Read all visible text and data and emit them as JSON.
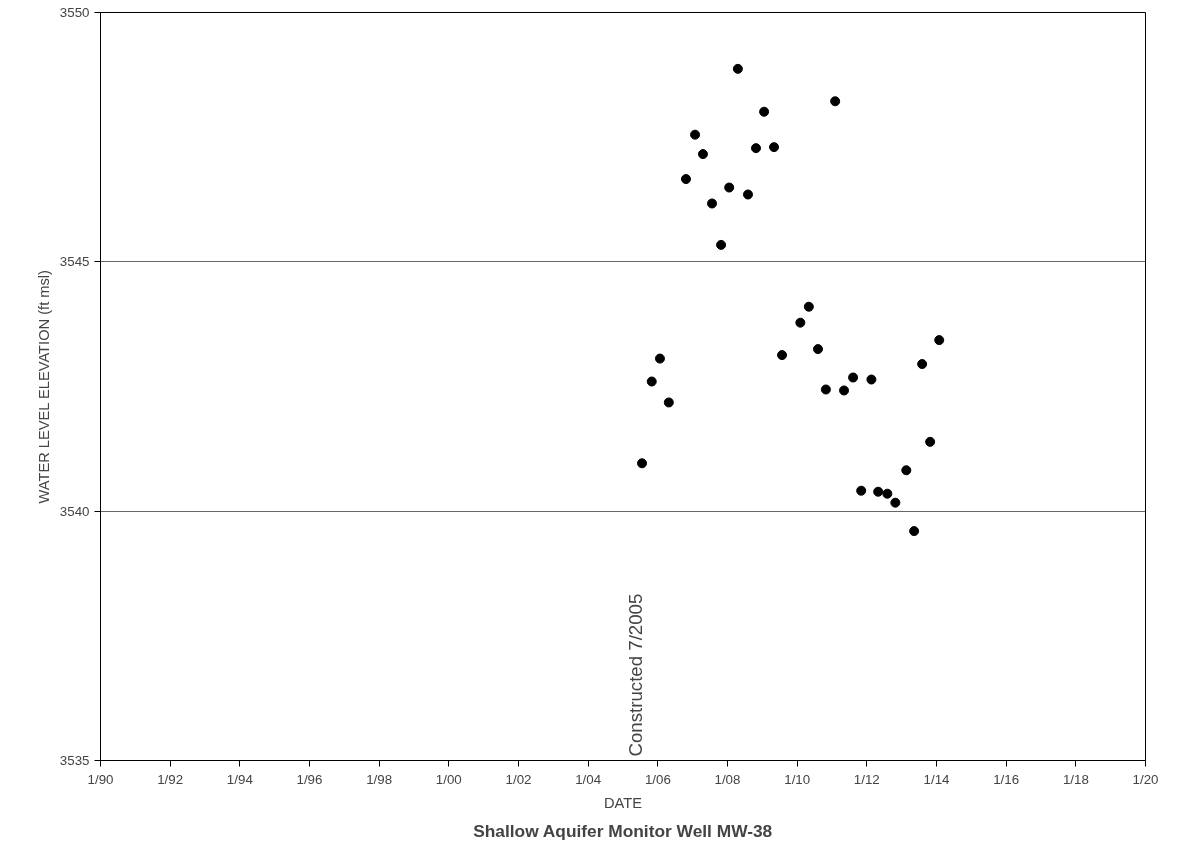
{
  "chart_data": {
    "type": "scatter",
    "title": "Shallow Aquifer Monitor Well MW-38",
    "xlabel": "DATE",
    "ylabel": "WATER LEVEL ELEVATION (ft msl)",
    "x": [
      "2005-07-19",
      "2005-10-29",
      "2006-01-23",
      "2006-04-26",
      "2006-10-23",
      "2007-01-26",
      "2007-04-19",
      "2007-07-23",
      "2007-10-26",
      "2008-01-19",
      "2008-04-19",
      "2008-08-03",
      "2008-10-26",
      "2009-01-19",
      "2009-05-03",
      "2009-07-26",
      "2010-02-03",
      "2010-05-03",
      "2010-08-07",
      "2010-10-29",
      "2011-02-03",
      "2011-05-07",
      "2011-08-10",
      "2011-11-03",
      "2012-02-18",
      "2012-04-29",
      "2012-08-03",
      "2012-10-26",
      "2013-02-18",
      "2013-05-11",
      "2013-08-03",
      "2013-10-26",
      "2014-01-29"
    ],
    "series": [
      {
        "color": "#000000",
        "values": [
          3540.96,
          3542.6,
          3543.06,
          3542.18,
          3546.66,
          3547.55,
          3547.16,
          3546.17,
          3545.34,
          3546.49,
          3548.87,
          3546.35,
          3547.28,
          3548.01,
          3547.3,
          3543.13,
          3543.78,
          3544.1,
          3543.25,
          3542.44,
          3548.22,
          3542.42,
          3542.68,
          3540.41,
          3542.64,
          3540.39,
          3540.35,
          3540.17,
          3540.82,
          3539.6,
          3542.95,
          3541.39,
          3543.43
        ]
      }
    ],
    "marker": "circle",
    "grid": "y",
    "xlim": [
      "1990-01-01",
      "2020-01-01"
    ],
    "xticks": [
      {
        "value": "1990-01-01",
        "label": "1/90"
      },
      {
        "value": "1992-01-01",
        "label": "1/92"
      },
      {
        "value": "1994-01-01",
        "label": "1/94"
      },
      {
        "value": "1996-01-01",
        "label": "1/96"
      },
      {
        "value": "1998-01-01",
        "label": "1/98"
      },
      {
        "value": "2000-01-01",
        "label": "1/00"
      },
      {
        "value": "2002-01-01",
        "label": "1/02"
      },
      {
        "value": "2004-01-01",
        "label": "1/04"
      },
      {
        "value": "2006-01-01",
        "label": "1/06"
      },
      {
        "value": "2008-01-01",
        "label": "1/08"
      },
      {
        "value": "2010-01-01",
        "label": "1/10"
      },
      {
        "value": "2012-01-01",
        "label": "1/12"
      },
      {
        "value": "2014-01-01",
        "label": "1/14"
      },
      {
        "value": "2016-01-01",
        "label": "1/16"
      },
      {
        "value": "2018-01-01",
        "label": "1/18"
      },
      {
        "value": "2020-01-01",
        "label": "1/20"
      }
    ],
    "ylim": [
      3535,
      3550
    ],
    "yticks": [
      3535,
      3540,
      3545,
      3550
    ],
    "annotations": [
      "Constructed 7/2005"
    ]
  }
}
